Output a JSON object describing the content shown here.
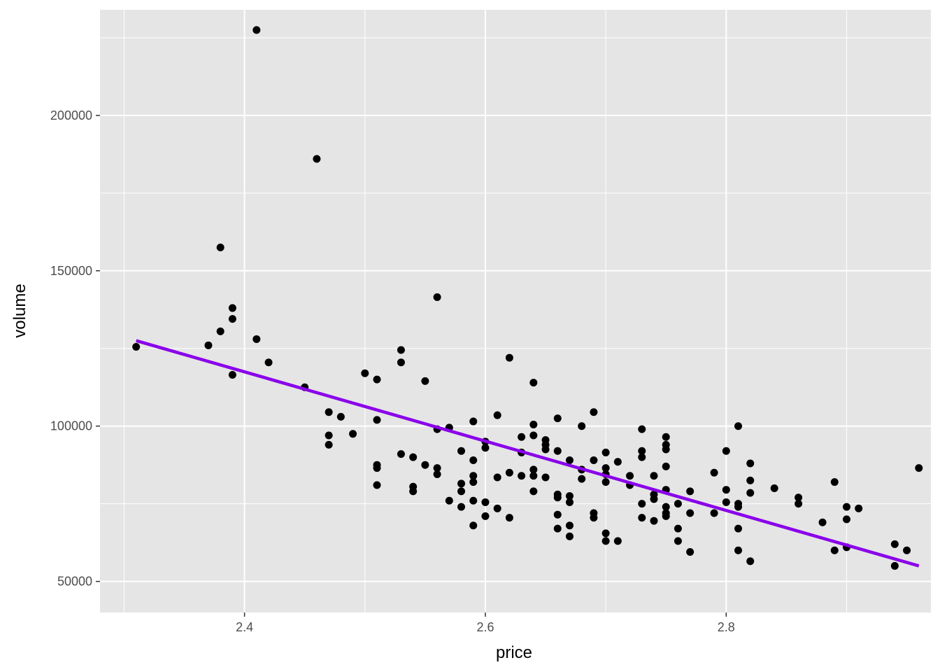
{
  "colors": {
    "panel_background": "#e5e5e5",
    "grid_major": "#ffffff",
    "point": "#000000",
    "trend_line": "#8a00ea"
  },
  "chart_data": {
    "type": "scatter",
    "title": "",
    "xlabel": "price",
    "ylabel": "volume",
    "xlim": [
      2.28,
      2.97
    ],
    "ylim": [
      40000,
      234000
    ],
    "x_ticks": [
      2.4,
      2.6,
      2.8
    ],
    "x_tick_labels": [
      "2.4",
      "2.6",
      "2.8"
    ],
    "y_ticks": [
      50000,
      100000,
      150000,
      200000
    ],
    "y_tick_labels": [
      "50000",
      "100000",
      "150000",
      "200000"
    ],
    "grid": true,
    "legend": "none",
    "points": [
      [
        2.31,
        125500
      ],
      [
        2.37,
        126000
      ],
      [
        2.38,
        157500
      ],
      [
        2.38,
        130500
      ],
      [
        2.39,
        138000
      ],
      [
        2.39,
        134500
      ],
      [
        2.39,
        116500
      ],
      [
        2.41,
        227500
      ],
      [
        2.41,
        128000
      ],
      [
        2.42,
        120500
      ],
      [
        2.45,
        112500
      ],
      [
        2.46,
        186000
      ],
      [
        2.47,
        104500
      ],
      [
        2.47,
        97000
      ],
      [
        2.47,
        94000
      ],
      [
        2.48,
        103000
      ],
      [
        2.49,
        97500
      ],
      [
        2.5,
        117000
      ],
      [
        2.51,
        115000
      ],
      [
        2.51,
        102000
      ],
      [
        2.51,
        87500
      ],
      [
        2.51,
        86500
      ],
      [
        2.51,
        81000
      ],
      [
        2.53,
        124500
      ],
      [
        2.53,
        120500
      ],
      [
        2.53,
        91000
      ],
      [
        2.54,
        90000
      ],
      [
        2.54,
        80500
      ],
      [
        2.54,
        79000
      ],
      [
        2.55,
        114500
      ],
      [
        2.55,
        87500
      ],
      [
        2.56,
        141500
      ],
      [
        2.56,
        99000
      ],
      [
        2.56,
        86500
      ],
      [
        2.56,
        84500
      ],
      [
        2.57,
        99500
      ],
      [
        2.57,
        76000
      ],
      [
        2.58,
        92000
      ],
      [
        2.58,
        81500
      ],
      [
        2.58,
        79000
      ],
      [
        2.58,
        74000
      ],
      [
        2.59,
        101500
      ],
      [
        2.59,
        89000
      ],
      [
        2.59,
        84000
      ],
      [
        2.59,
        82000
      ],
      [
        2.59,
        76000
      ],
      [
        2.59,
        68000
      ],
      [
        2.6,
        95000
      ],
      [
        2.6,
        93000
      ],
      [
        2.6,
        75500
      ],
      [
        2.6,
        71000
      ],
      [
        2.61,
        103500
      ],
      [
        2.61,
        83500
      ],
      [
        2.61,
        73500
      ],
      [
        2.62,
        122000
      ],
      [
        2.62,
        85000
      ],
      [
        2.62,
        70500
      ],
      [
        2.63,
        96500
      ],
      [
        2.63,
        91500
      ],
      [
        2.63,
        84000
      ],
      [
        2.64,
        114000
      ],
      [
        2.64,
        100500
      ],
      [
        2.64,
        97000
      ],
      [
        2.64,
        86000
      ],
      [
        2.64,
        84000
      ],
      [
        2.64,
        79000
      ],
      [
        2.65,
        95500
      ],
      [
        2.65,
        94000
      ],
      [
        2.65,
        92500
      ],
      [
        2.65,
        83500
      ],
      [
        2.66,
        102500
      ],
      [
        2.66,
        92000
      ],
      [
        2.66,
        78000
      ],
      [
        2.66,
        77000
      ],
      [
        2.66,
        71500
      ],
      [
        2.66,
        67000
      ],
      [
        2.67,
        89000
      ],
      [
        2.67,
        77500
      ],
      [
        2.67,
        75500
      ],
      [
        2.67,
        68000
      ],
      [
        2.67,
        64500
      ],
      [
        2.68,
        100000
      ],
      [
        2.68,
        86000
      ],
      [
        2.68,
        83000
      ],
      [
        2.69,
        104500
      ],
      [
        2.69,
        89000
      ],
      [
        2.69,
        72000
      ],
      [
        2.69,
        70500
      ],
      [
        2.7,
        91500
      ],
      [
        2.7,
        86500
      ],
      [
        2.7,
        84500
      ],
      [
        2.7,
        82000
      ],
      [
        2.7,
        65500
      ],
      [
        2.7,
        63000
      ],
      [
        2.71,
        88500
      ],
      [
        2.71,
        63000
      ],
      [
        2.72,
        84000
      ],
      [
        2.72,
        81000
      ],
      [
        2.73,
        99000
      ],
      [
        2.73,
        92000
      ],
      [
        2.73,
        90000
      ],
      [
        2.73,
        75000
      ],
      [
        2.73,
        70500
      ],
      [
        2.74,
        84000
      ],
      [
        2.74,
        78000
      ],
      [
        2.74,
        76500
      ],
      [
        2.74,
        69500
      ],
      [
        2.75,
        96500
      ],
      [
        2.75,
        94000
      ],
      [
        2.75,
        92500
      ],
      [
        2.75,
        87000
      ],
      [
        2.75,
        79500
      ],
      [
        2.75,
        74000
      ],
      [
        2.75,
        72000
      ],
      [
        2.75,
        71000
      ],
      [
        2.76,
        75000
      ],
      [
        2.76,
        67000
      ],
      [
        2.76,
        63000
      ],
      [
        2.77,
        79000
      ],
      [
        2.77,
        72000
      ],
      [
        2.77,
        59500
      ],
      [
        2.79,
        85000
      ],
      [
        2.79,
        72000
      ],
      [
        2.8,
        92000
      ],
      [
        2.8,
        79500
      ],
      [
        2.8,
        75500
      ],
      [
        2.81,
        100000
      ],
      [
        2.81,
        75000
      ],
      [
        2.81,
        74000
      ],
      [
        2.81,
        67000
      ],
      [
        2.81,
        60000
      ],
      [
        2.82,
        88000
      ],
      [
        2.82,
        82500
      ],
      [
        2.82,
        78500
      ],
      [
        2.82,
        56500
      ],
      [
        2.84,
        80000
      ],
      [
        2.86,
        77000
      ],
      [
        2.86,
        75000
      ],
      [
        2.88,
        69000
      ],
      [
        2.89,
        82000
      ],
      [
        2.89,
        60000
      ],
      [
        2.9,
        74000
      ],
      [
        2.9,
        70000
      ],
      [
        2.9,
        61000
      ],
      [
        2.91,
        73500
      ],
      [
        2.94,
        62000
      ],
      [
        2.94,
        55000
      ],
      [
        2.95,
        60000
      ],
      [
        2.96,
        86500
      ]
    ],
    "trend_line": {
      "type": "linear",
      "x": [
        2.31,
        2.96
      ],
      "y": [
        127500,
        55000
      ]
    }
  }
}
